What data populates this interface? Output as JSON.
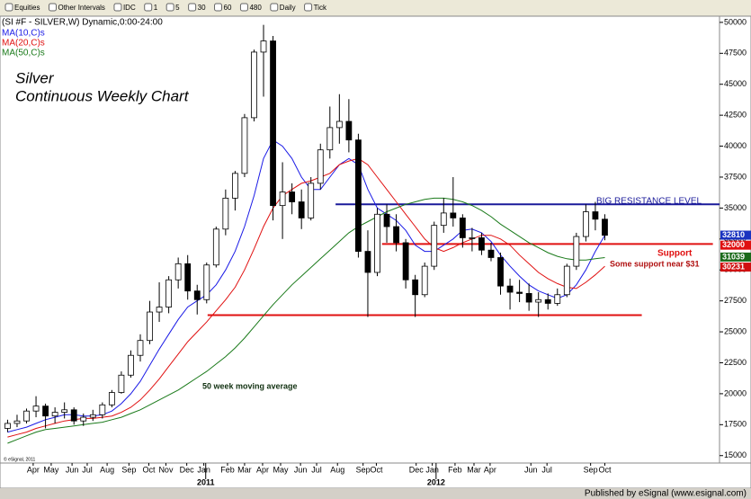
{
  "toolbar": {
    "items": [
      "Equities",
      "Other Intervals",
      "IDC",
      "1",
      "5",
      "30",
      "60",
      "480",
      "Daily",
      "Tick"
    ]
  },
  "chart_data": {
    "type": "candlestick",
    "header": "(SI #F - SILVER,W) Dynamic,0:00-24:00",
    "title": "Silver",
    "subtitle": "Continuous Weekly Chart",
    "open": [
      17200,
      17600,
      17800,
      18600,
      19000,
      18200,
      18500,
      18700,
      17800,
      18100,
      18300,
      19100,
      20100,
      21500,
      23100,
      24300,
      26600,
      27000,
      29200,
      30500,
      28300,
      27600,
      30400,
      33300,
      35800,
      37800,
      42300,
      47600,
      48500,
      35200,
      36300,
      35500,
      34200,
      37000,
      39700,
      41500,
      42000,
      40500,
      31500,
      29800,
      34500,
      33500,
      32200,
      29200,
      28000,
      30300,
      33600,
      34600,
      34200,
      32600,
      32600,
      31600,
      31000,
      28700,
      28200,
      28100,
      27400,
      27600,
      27300,
      28000,
      30300,
      32700,
      34700,
      34100
    ],
    "high": [
      17900,
      18300,
      18800,
      19800,
      19200,
      18900,
      19300,
      18900,
      18400,
      18700,
      19300,
      20300,
      21800,
      23500,
      24800,
      27500,
      29000,
      29500,
      31000,
      31200,
      28800,
      30600,
      33500,
      36500,
      38000,
      42600,
      47800,
      49800,
      48900,
      38700,
      37000,
      36500,
      37500,
      40200,
      43200,
      44200,
      43800,
      41000,
      33200,
      35000,
      35300,
      34500,
      32500,
      29600,
      30600,
      33900,
      35800,
      37500,
      34500,
      33400,
      33000,
      32200,
      31400,
      29300,
      29200,
      28900,
      28200,
      28100,
      28500,
      30500,
      33000,
      35300,
      35500,
      34500
    ],
    "low": [
      16900,
      17300,
      17600,
      18100,
      17200,
      17600,
      18000,
      17500,
      17400,
      17800,
      18000,
      18900,
      20000,
      21300,
      22600,
      24000,
      25800,
      26500,
      28500,
      27600,
      26400,
      27300,
      30200,
      32800,
      34800,
      37500,
      42000,
      44000,
      34000,
      32500,
      34500,
      33300,
      34000,
      36500,
      39000,
      40200,
      39500,
      31000,
      26200,
      29500,
      32200,
      31500,
      28500,
      26200,
      27800,
      30000,
      33000,
      33500,
      31800,
      31500,
      31200,
      30700,
      28000,
      26800,
      27400,
      26700,
      26200,
      26800,
      27100,
      27800,
      30000,
      32300,
      33200,
      32400
    ],
    "close": [
      17600,
      17800,
      18600,
      19000,
      18200,
      18500,
      18700,
      17800,
      18100,
      18300,
      19100,
      20100,
      21500,
      23100,
      24300,
      26600,
      27000,
      29200,
      30500,
      28300,
      27600,
      30400,
      33300,
      35800,
      37800,
      42300,
      47600,
      48500,
      35200,
      36300,
      35500,
      34200,
      37000,
      39700,
      41500,
      42000,
      40500,
      31500,
      29800,
      34500,
      33500,
      32200,
      29200,
      28000,
      30300,
      33600,
      34600,
      34200,
      32600,
      32600,
      31600,
      31000,
      28700,
      28200,
      28100,
      27400,
      27600,
      27300,
      28000,
      30300,
      32700,
      34700,
      34100,
      32800
    ],
    "series": [
      {
        "name": "MA(10,C)s",
        "color": "#1a1ae6",
        "values": [
          16900,
          17100,
          17300,
          17600,
          17900,
          18100,
          18300,
          18300,
          18200,
          18200,
          18300,
          18600,
          19200,
          20000,
          21000,
          22300,
          23600,
          24800,
          26000,
          27000,
          27500,
          28000,
          28800,
          30000,
          31500,
          33500,
          36000,
          39000,
          40500,
          40000,
          39000,
          37500,
          36500,
          36500,
          37500,
          38500,
          39000,
          38500,
          36500,
          35000,
          34500,
          34000,
          33200,
          32000,
          31500,
          31500,
          32000,
          32500,
          33200,
          33300,
          33000,
          32300,
          31200,
          30300,
          29500,
          28800,
          28300,
          28000,
          27700,
          28000,
          28800,
          30000,
          31500,
          32800
        ]
      },
      {
        "name": "MA(20,C)s",
        "color": "#e01010",
        "values": [
          16500,
          16700,
          16900,
          17200,
          17400,
          17600,
          17800,
          17900,
          18000,
          18000,
          18100,
          18200,
          18500,
          18900,
          19500,
          20300,
          21200,
          22200,
          23200,
          24200,
          25000,
          25800,
          26700,
          27600,
          28600,
          30000,
          31700,
          33500,
          35000,
          36000,
          36500,
          37000,
          37200,
          37500,
          37800,
          38500,
          38800,
          39000,
          38500,
          37500,
          36500,
          35500,
          34500,
          33500,
          32500,
          31800,
          31500,
          31800,
          32200,
          32500,
          32800,
          32800,
          32500,
          32000,
          31200,
          30500,
          29800,
          29300,
          28900,
          28600,
          28500,
          29000,
          29600,
          30300
        ]
      },
      {
        "name": "MA(50,C)s",
        "color": "#1a7a1a",
        "values": [
          16000,
          16300,
          16600,
          16900,
          17100,
          17200,
          17300,
          17400,
          17500,
          17600,
          17700,
          17900,
          18100,
          18400,
          18700,
          19100,
          19500,
          19900,
          20300,
          20800,
          21300,
          21800,
          22400,
          23000,
          23700,
          24500,
          25400,
          26300,
          27200,
          28000,
          28800,
          29500,
          30200,
          30900,
          31600,
          32300,
          33000,
          33500,
          33900,
          34300,
          34700,
          35000,
          35300,
          35500,
          35700,
          35800,
          35800,
          35700,
          35500,
          35200,
          34800,
          34300,
          33700,
          33200,
          32700,
          32200,
          31800,
          31400,
          31100,
          30900,
          30800,
          30800,
          30900,
          31000
        ]
      }
    ],
    "xlim": [
      -0.8,
      75.1
    ],
    "ylim": [
      14400,
      50500
    ],
    "yticks": [
      15000,
      17500,
      20000,
      22500,
      25000,
      27500,
      30000,
      32500,
      35000,
      37500,
      40000,
      42500,
      45000,
      47500,
      50000
    ],
    "xticks": [
      {
        "value": 2.7,
        "label": "Apr"
      },
      {
        "value": 4.6,
        "label": "May"
      },
      {
        "value": 6.8,
        "label": "Jun"
      },
      {
        "value": 8.4,
        "label": "Jul"
      },
      {
        "value": 10.5,
        "label": "Aug"
      },
      {
        "value": 12.8,
        "label": "Sep"
      },
      {
        "value": 14.9,
        "label": "Oct"
      },
      {
        "value": 16.7,
        "label": "Nov"
      },
      {
        "value": 18.9,
        "label": "Dec"
      },
      {
        "value": 20.7,
        "label": "Jan"
      },
      {
        "value": 23.2,
        "label": "Feb"
      },
      {
        "value": 25.0,
        "label": "Mar"
      },
      {
        "value": 26.9,
        "label": "Apr"
      },
      {
        "value": 28.8,
        "label": "May"
      },
      {
        "value": 30.9,
        "label": "Jun"
      },
      {
        "value": 32.6,
        "label": "Jul"
      },
      {
        "value": 34.8,
        "label": "Aug"
      },
      {
        "value": 37.5,
        "label": "Sep"
      },
      {
        "value": 38.9,
        "label": "Oct"
      },
      {
        "value": 43.1,
        "label": "Dec"
      },
      {
        "value": 44.8,
        "label": "Jan"
      },
      {
        "value": 47.2,
        "label": "Feb"
      },
      {
        "value": 49.2,
        "label": "Mar"
      },
      {
        "value": 50.9,
        "label": "Apr"
      },
      {
        "value": 55.2,
        "label": "Jun"
      },
      {
        "value": 56.9,
        "label": "Jul"
      },
      {
        "value": 61.5,
        "label": "Sep"
      },
      {
        "value": 63.0,
        "label": "Oct"
      }
    ],
    "years": [
      {
        "value": 20.9,
        "label": "2011"
      },
      {
        "value": 45.2,
        "label": "2012"
      }
    ],
    "levels": [
      {
        "y": 35300,
        "x": [
          34.6,
          75.1
        ],
        "color": "#1a1a9a"
      },
      {
        "y": 26350,
        "x": [
          21.1,
          66.9
        ],
        "color": "#e01010"
      },
      {
        "y": 32100,
        "x": [
          39.5,
          74.4
        ],
        "color": "#e01010"
      }
    ],
    "price_tags": [
      {
        "value": 32810,
        "color": "#1a33c0"
      },
      {
        "value": 32000,
        "color": "#e01010"
      },
      {
        "value": 31039,
        "color": "#1a6a1a"
      },
      {
        "value": 30231,
        "color": "#d01010"
      }
    ],
    "annotations": [
      {
        "text": "BIG RESISTANCE LEVEL",
        "color": "#1a1a9a"
      },
      {
        "text": "Support",
        "color": "#e01010"
      },
      {
        "text": "Some support near $31",
        "color": "#b01010"
      },
      {
        "text": "50 week moving average",
        "color": "#103010"
      }
    ],
    "copyright": "© eSignal, 2011"
  },
  "footer": "Published by eSignal (www.esignal.com)"
}
